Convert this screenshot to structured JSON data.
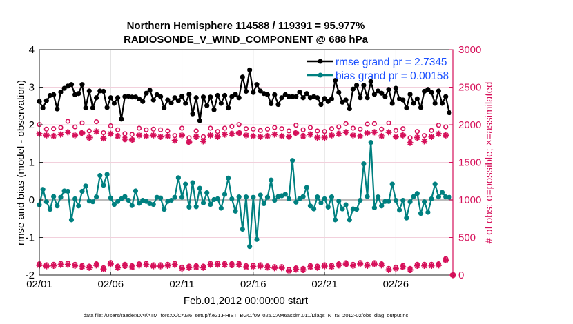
{
  "chart_data": {
    "type": "line",
    "title": [
      "Northern Hemisphere 114588 / 119391 = 95.977%",
      "RADIOSONDE_V_WIND_COMPONENT @ 688 hPa"
    ],
    "xlabel": "Feb.01,2012 00:00:00 start",
    "ylabel_left": "rmse and bias (model - observation)",
    "ylabel_right": "# of obs: o=possible; ×=assimilated",
    "footer": "data file: /Users/raeder/DAI/ATM_forcXX/CAM6_setup/f.e21.FHIST_BGC.f09_025.CAM6assim.011/Diags_NTrS_2012-02/obs_diag_output.nc",
    "x_unit": "days since 02/01",
    "xlim": [
      0,
      29
    ],
    "ylim_left": [
      -2,
      4
    ],
    "ylim_right": [
      0,
      3000
    ],
    "x_ticks": [
      0,
      5,
      10,
      15,
      20,
      25
    ],
    "x_tick_labels": [
      "02/01",
      "02/06",
      "02/11",
      "02/16",
      "02/21",
      "02/26"
    ],
    "y_left_ticks": [
      "4",
      "3",
      "2",
      "1",
      "0",
      "-1",
      "-2"
    ],
    "y_right_ticks": [
      "3000",
      "2500",
      "2000",
      "1500",
      "1000",
      "500",
      "0"
    ],
    "legend_placement": "top-right",
    "grid": true,
    "colors": {
      "rmse": "#000000",
      "bias": "#008080",
      "obs": "#d6105a",
      "legend_text": "#1a4fff",
      "zero_line": "#bbbbbb"
    },
    "series": [
      {
        "name": "rmse grand pr = 2.7345",
        "key": "rmse",
        "x_step": 0.25,
        "values": [
          2.62,
          2.45,
          2.64,
          2.78,
          2.8,
          2.42,
          2.87,
          2.97,
          3.03,
          3.07,
          2.8,
          2.83,
          3.07,
          2.45,
          2.9,
          2.45,
          2.72,
          2.9,
          2.89,
          2.46,
          2.72,
          2.57,
          2.72,
          2.15,
          2.75,
          2.76,
          2.74,
          2.74,
          2.69,
          2.62,
          2.84,
          2.92,
          2.66,
          2.8,
          2.75,
          2.45,
          2.66,
          2.58,
          2.72,
          2.64,
          2.76,
          2.57,
          2.81,
          2.29,
          2.72,
          2.11,
          2.74,
          2.51,
          2.74,
          2.4,
          2.78,
          2.57,
          2.78,
          2.45,
          2.75,
          2.81,
          2.72,
          3.27,
          2.89,
          3.46,
          2.86,
          3.07,
          2.9,
          2.83,
          2.8,
          2.56,
          2.8,
          2.54,
          2.72,
          2.8,
          2.75,
          2.75,
          2.75,
          2.87,
          2.72,
          2.83,
          2.72,
          2.75,
          2.72,
          2.54,
          2.7,
          2.62,
          2.69,
          3.18,
          2.86,
          2.6,
          2.66,
          2.43,
          2.95,
          3.05,
          2.72,
          3.05,
          2.72,
          3.15,
          2.81,
          2.9,
          2.84,
          2.75,
          2.94,
          2.57,
          2.97,
          2.69,
          2.66,
          2.45,
          2.81,
          2.57,
          2.69,
          2.46,
          2.89,
          2.94,
          2.86,
          2.57,
          2.9,
          2.57,
          2.75,
          2.32
        ]
      },
      {
        "name": "bias grand pr = 0.00158",
        "key": "bias",
        "x_step": 0.25,
        "values": [
          -0.13,
          0.28,
          -0.05,
          -0.25,
          0.09,
          -0.16,
          0.07,
          0.24,
          0.23,
          -0.53,
          0.03,
          -0.16,
          0.23,
          0.37,
          -0.03,
          -0.05,
          0.08,
          0.65,
          0.39,
          0.68,
          0.05,
          -0.12,
          -0.04,
          0.03,
          0.09,
          -0.01,
          -0.15,
          0.24,
          -0.09,
          -0.01,
          -0.04,
          -0.1,
          -0.12,
          0.07,
          0.05,
          -0.25,
          -0.04,
          -0.01,
          0.07,
          0.59,
          0.07,
          0.42,
          -0.19,
          0.46,
          -0.18,
          0.31,
          -0.08,
          0.19,
          -0.12,
          0.01,
          0.03,
          -0.22,
          0.15,
          0.58,
          0.03,
          -0.3,
          0.08,
          -0.78,
          0.08,
          -1.24,
          0.07,
          -1.05,
          0.13,
          -0.1,
          0.07,
          0.53,
          -0.01,
          0.09,
          0.11,
          0.15,
          0.03,
          1.05,
          -0.06,
          0.03,
          0.09,
          0.33,
          -0.16,
          -0.24,
          0.08,
          -0.08,
          0.03,
          -0.19,
          0.08,
          -0.53,
          -0.03,
          -0.24,
          -0.13,
          -0.53,
          -0.24,
          -0.25,
          -0.01,
          0.96,
          0.09,
          1.53,
          -0.21,
          0.08,
          -0.16,
          -0.04,
          -0.04,
          0.42,
          -0.01,
          -0.27,
          -0.01,
          -0.48,
          -0.05,
          0.09,
          0.17,
          -0.36,
          -0.05,
          -0.33,
          0.03,
          0.42,
          0.08,
          0.2,
          0.08,
          0.07
        ]
      },
      {
        "name": "obs possible (upper)",
        "key": "poss_top",
        "axis": "right",
        "x_step": 0.5,
        "values": [
          2003,
          1942,
          1948,
          1963,
          2046,
          1972,
          2024,
          1918,
          2040,
          1894,
          1985,
          1933,
          1881,
          1872,
          1954,
          1933,
          1942,
          1933,
          1918,
          1856,
          1954,
          1826,
          1918,
          1841,
          1954,
          1911,
          1954,
          1979,
          2003,
          1948,
          1942,
          1924,
          1942,
          1963,
          1948,
          1918,
          1994,
          1933,
          1963,
          1918,
          1911,
          1948,
          1972,
          2015,
          1954,
          1942,
          2009,
          2015,
          1942,
          2024,
          1924,
          1948,
          1826,
          1911,
          1856,
          1924,
          1994,
          1972
        ]
      },
      {
        "name": "obs assimilated (upper)",
        "key": "assim_top",
        "axis": "right",
        "x_step": 0.5,
        "values": [
          1880,
          1860,
          1850,
          1870,
          1900,
          1860,
          1890,
          1830,
          1910,
          1820,
          1880,
          1850,
          1810,
          1800,
          1860,
          1850,
          1860,
          1840,
          1850,
          1790,
          1860,
          1770,
          1840,
          1780,
          1860,
          1840,
          1870,
          1880,
          1890,
          1860,
          1850,
          1840,
          1850,
          1870,
          1850,
          1840,
          1890,
          1850,
          1870,
          1830,
          1830,
          1860,
          1880,
          1900,
          1860,
          1850,
          1890,
          1900,
          1850,
          1900,
          1840,
          1860,
          1760,
          1830,
          1780,
          1840,
          1880,
          1860
        ]
      },
      {
        "name": "obs possible (lower)",
        "key": "poss_bot",
        "axis": "right",
        "x_step": 0.5,
        "values": [
          150,
          138,
          144,
          156,
          159,
          144,
          128,
          119,
          150,
          98,
          168,
          119,
          144,
          125,
          150,
          156,
          138,
          138,
          144,
          156,
          107,
          119,
          125,
          119,
          156,
          159,
          156,
          153,
          156,
          125,
          131,
          138,
          122,
          113,
          113,
          76,
          95,
          89,
          128,
          119,
          138,
          131,
          150,
          165,
          144,
          168,
          144,
          165,
          150,
          89,
          107,
          128,
          89,
          144,
          144,
          144,
          150,
          220,
          0
        ]
      },
      {
        "name": "obs assimilated (lower)",
        "key": "assim_bot",
        "axis": "right",
        "x_step": 0.5,
        "values": [
          130,
          118,
          124,
          136,
          139,
          124,
          108,
          99,
          130,
          78,
          148,
          99,
          124,
          105,
          130,
          136,
          118,
          118,
          124,
          136,
          87,
          99,
          105,
          99,
          136,
          139,
          136,
          133,
          136,
          105,
          111,
          118,
          102,
          93,
          93,
          56,
          75,
          69,
          108,
          99,
          118,
          111,
          130,
          145,
          124,
          148,
          124,
          145,
          130,
          69,
          87,
          108,
          69,
          124,
          124,
          124,
          130,
          200,
          0
        ]
      }
    ]
  }
}
